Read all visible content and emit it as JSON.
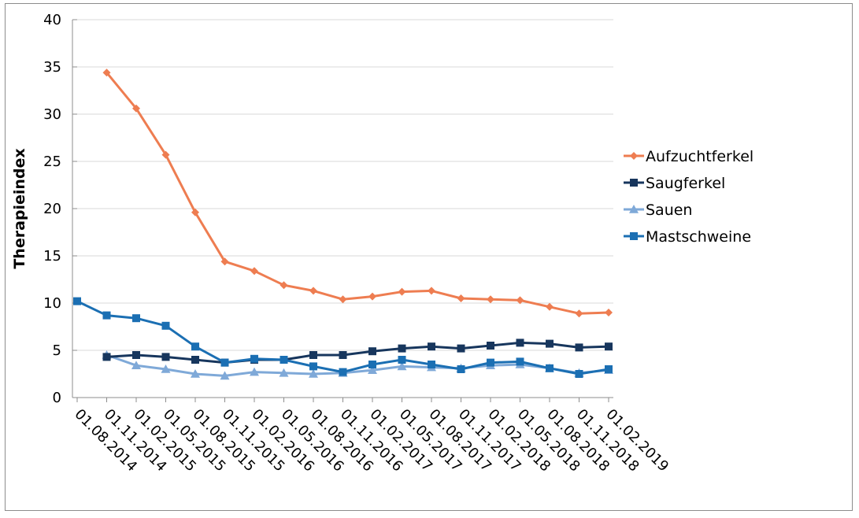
{
  "chart_data": {
    "type": "line",
    "ylabel": "Therapieindex",
    "xlabel": "",
    "ylim": [
      0,
      40
    ],
    "yticks": [
      0,
      5,
      10,
      15,
      20,
      25,
      30,
      35,
      40
    ],
    "grid": "horizontal",
    "legend_position": "right",
    "categories": [
      "01.08.2014",
      "01.11.2014",
      "01.02.2015",
      "01.05.2015",
      "01.08.2015",
      "01.11.2015",
      "01.02.2016",
      "01.05.2016",
      "01.08.2016",
      "01.11.2016",
      "01.02.2017",
      "01.05.2017",
      "01.08.2017",
      "01.11.2017",
      "01.02.2018",
      "01.05.2018",
      "01.08.2018",
      "01.11.2018",
      "01.02.2019"
    ],
    "series": [
      {
        "name": "Aufzuchtferkel",
        "color": "#ee7d51",
        "marker": "diamond",
        "values": [
          null,
          34.4,
          30.6,
          25.7,
          19.6,
          14.4,
          13.4,
          11.9,
          11.3,
          10.4,
          10.7,
          11.2,
          11.3,
          10.5,
          10.4,
          10.3,
          9.6,
          8.9,
          9.0
        ]
      },
      {
        "name": "Saugferkel",
        "color": "#17365d",
        "marker": "square",
        "values": [
          null,
          4.3,
          4.5,
          4.3,
          4.0,
          3.7,
          4.0,
          4.0,
          4.5,
          4.5,
          4.9,
          5.2,
          5.4,
          5.2,
          5.5,
          5.8,
          5.7,
          5.3,
          5.4
        ]
      },
      {
        "name": "Sauen",
        "color": "#7fa9d8",
        "marker": "triangle",
        "values": [
          null,
          4.5,
          3.4,
          3.0,
          2.5,
          2.3,
          2.7,
          2.6,
          2.5,
          2.6,
          2.9,
          3.3,
          3.2,
          3.1,
          3.4,
          3.5,
          3.1,
          2.6,
          2.9
        ]
      },
      {
        "name": "Mastschweine",
        "color": "#1b6fb3",
        "marker": "square",
        "values": [
          10.2,
          8.7,
          8.4,
          7.6,
          5.4,
          3.7,
          4.1,
          4.0,
          3.3,
          2.7,
          3.5,
          4.0,
          3.5,
          3.0,
          3.7,
          3.8,
          3.1,
          2.5,
          3.0
        ]
      }
    ]
  }
}
